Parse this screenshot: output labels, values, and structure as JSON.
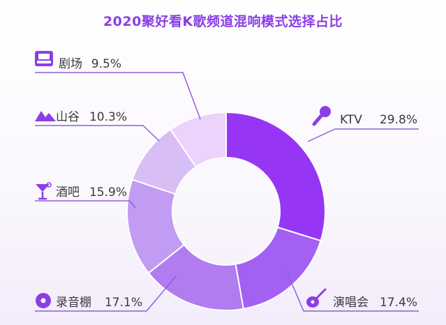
{
  "chart_data": {
    "type": "pie",
    "title": "2020聚好看K歌频道混响模式选择占比",
    "slices": [
      {
        "label": "KTV",
        "value": 29.8,
        "value_text": "29.8%",
        "color": "#9636f4",
        "icon": "microphone-icon"
      },
      {
        "label": "演唱会",
        "value": 17.4,
        "value_text": "17.4%",
        "color": "#a460f3",
        "icon": "guitar-icon"
      },
      {
        "label": "录音棚",
        "value": 17.1,
        "value_text": "17.1%",
        "color": "#b07cf0",
        "icon": "disc-icon"
      },
      {
        "label": "酒吧",
        "value": 15.9,
        "value_text": "15.9%",
        "color": "#c29cf2",
        "icon": "cocktail-glass-icon"
      },
      {
        "label": "山谷",
        "value": 10.3,
        "value_text": "10.3%",
        "color": "#d7bef5",
        "icon": "mountain-icon"
      },
      {
        "label": "剧场",
        "value": 9.5,
        "value_text": "9.5%",
        "color": "#ecd3fb",
        "icon": "theater-seat-icon"
      }
    ]
  }
}
